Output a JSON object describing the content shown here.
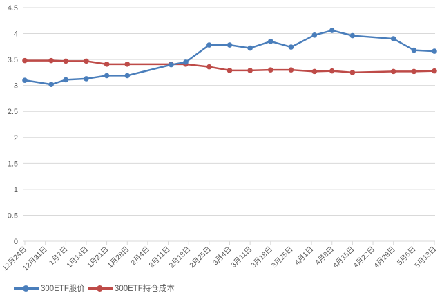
{
  "chart_data": {
    "type": "line",
    "title": "",
    "xlabel": "",
    "ylabel": "",
    "ylim": [
      0,
      4.5
    ],
    "yticks": [
      "0",
      "0.5",
      "1",
      "1.5",
      "2",
      "2.5",
      "3",
      "3.5",
      "4",
      "4.5"
    ],
    "grid": true,
    "legend_position": "bottom-left",
    "x_axis_labels": [
      "12月24日",
      "12月31日",
      "1月7日",
      "1月14日",
      "1月21日",
      "1月28日",
      "2月4日",
      "2月11日",
      "2月18日",
      "2月25日",
      "3月4日",
      "3月11日",
      "3月18日",
      "3月25日",
      "4月1日",
      "4月8日",
      "4月15日",
      "4月22日",
      "4月29日",
      "5月6日",
      "5月13日"
    ],
    "x": [
      "12月24日",
      "1月2日",
      "1月7日",
      "1月14日",
      "1月21日",
      "1月28日",
      "2月12日",
      "2月17日",
      "2月25日",
      "3月4日",
      "3月11日",
      "3月18日",
      "3月25日",
      "4月2日",
      "4月8日",
      "4月15日",
      "4月29日",
      "5月6日",
      "5月13日"
    ],
    "x_days": [
      0,
      9,
      14,
      21,
      28,
      35,
      50,
      55,
      63,
      70,
      77,
      84,
      91,
      99,
      105,
      112,
      126,
      133,
      140
    ],
    "series": [
      {
        "name": "300ETF股价",
        "color": "#4a7ebb",
        "values": [
          3.1,
          3.02,
          3.11,
          3.13,
          3.19,
          3.19,
          3.4,
          3.45,
          3.78,
          3.78,
          3.72,
          3.85,
          3.74,
          3.97,
          4.06,
          3.96,
          3.9,
          3.68,
          3.66
        ]
      },
      {
        "name": "300ETF持仓成本",
        "color": "#be4b48",
        "values": [
          3.48,
          3.48,
          3.47,
          3.47,
          3.41,
          3.41,
          3.41,
          3.41,
          3.36,
          3.29,
          3.29,
          3.3,
          3.3,
          3.27,
          3.28,
          3.25,
          3.27,
          3.27,
          3.28
        ]
      }
    ]
  },
  "legend": {
    "items": [
      {
        "label": "300ETF股价",
        "color": "#4a7ebb"
      },
      {
        "label": "300ETF持仓成本",
        "color": "#be4b48"
      }
    ]
  }
}
